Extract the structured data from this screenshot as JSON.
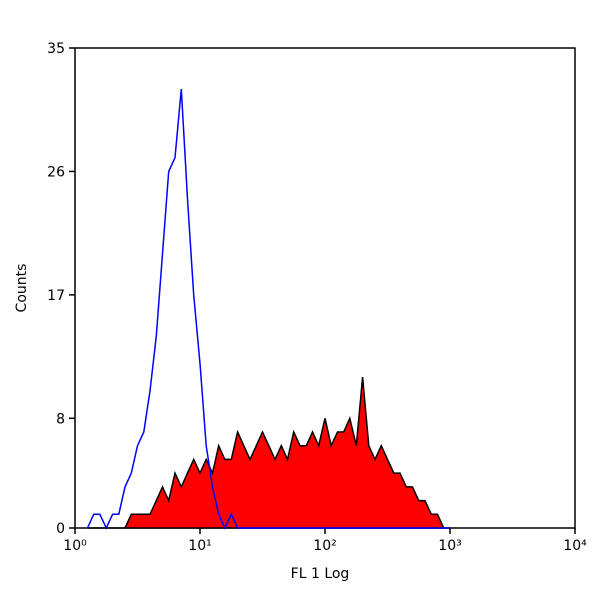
{
  "chart_data": {
    "type": "area",
    "xscale": "log",
    "xlabel": "FL 1 Log",
    "ylabel": "Counts",
    "xlim": [
      1,
      10000
    ],
    "ylim": [
      0,
      35
    ],
    "xticks": [
      {
        "value": 1,
        "label": "10⁰"
      },
      {
        "value": 10,
        "label": "10¹"
      },
      {
        "value": 100,
        "label": "10²"
      },
      {
        "value": 1000,
        "label": "10³"
      },
      {
        "value": 10000,
        "label": "10⁴"
      }
    ],
    "yticks": [
      0,
      8,
      17,
      26,
      35
    ],
    "x": [
      1.26,
      1.41,
      1.58,
      1.78,
      2.0,
      2.24,
      2.51,
      2.82,
      3.16,
      3.55,
      3.98,
      4.47,
      5.01,
      5.62,
      6.31,
      7.08,
      7.94,
      8.91,
      10,
      11.2,
      12.6,
      14.1,
      15.8,
      17.8,
      20,
      22.4,
      25.1,
      28.2,
      31.6,
      35.5,
      39.8,
      44.7,
      50.1,
      56.2,
      63.1,
      70.8,
      79.4,
      89.1,
      100,
      112,
      126,
      141,
      158,
      178,
      200,
      224,
      251,
      282,
      316,
      355,
      398,
      447,
      501,
      562,
      631,
      708,
      794,
      891,
      1000
    ],
    "series": [
      {
        "color": "#0000ff",
        "fill": "none",
        "values": [
          0,
          1,
          1,
          0,
          1,
          1,
          3,
          4,
          6,
          7,
          10,
          14,
          20,
          26,
          27,
          32,
          24,
          17,
          12,
          6,
          3,
          1,
          0,
          1,
          0,
          0,
          0,
          0,
          0,
          0,
          0,
          0,
          0,
          0,
          0,
          0,
          0,
          0,
          0,
          0,
          0,
          0,
          0,
          0,
          0,
          0,
          0,
          0,
          0,
          0,
          0,
          0,
          0,
          0,
          0,
          0,
          0,
          0,
          0
        ]
      },
      {
        "color": "#000000",
        "fill": "#ff0000",
        "values": [
          0,
          0,
          0,
          0,
          0,
          0,
          0,
          1,
          1,
          1,
          1,
          2,
          3,
          2,
          4,
          3,
          4,
          5,
          4,
          5,
          4,
          6,
          5,
          5,
          7,
          6,
          5,
          6,
          7,
          6,
          5,
          6,
          5,
          7,
          6,
          6,
          7,
          6,
          8,
          6,
          7,
          7,
          8,
          6,
          11,
          6,
          5,
          6,
          5,
          4,
          4,
          3,
          3,
          2,
          2,
          1,
          1,
          0,
          0
        ]
      }
    ]
  }
}
